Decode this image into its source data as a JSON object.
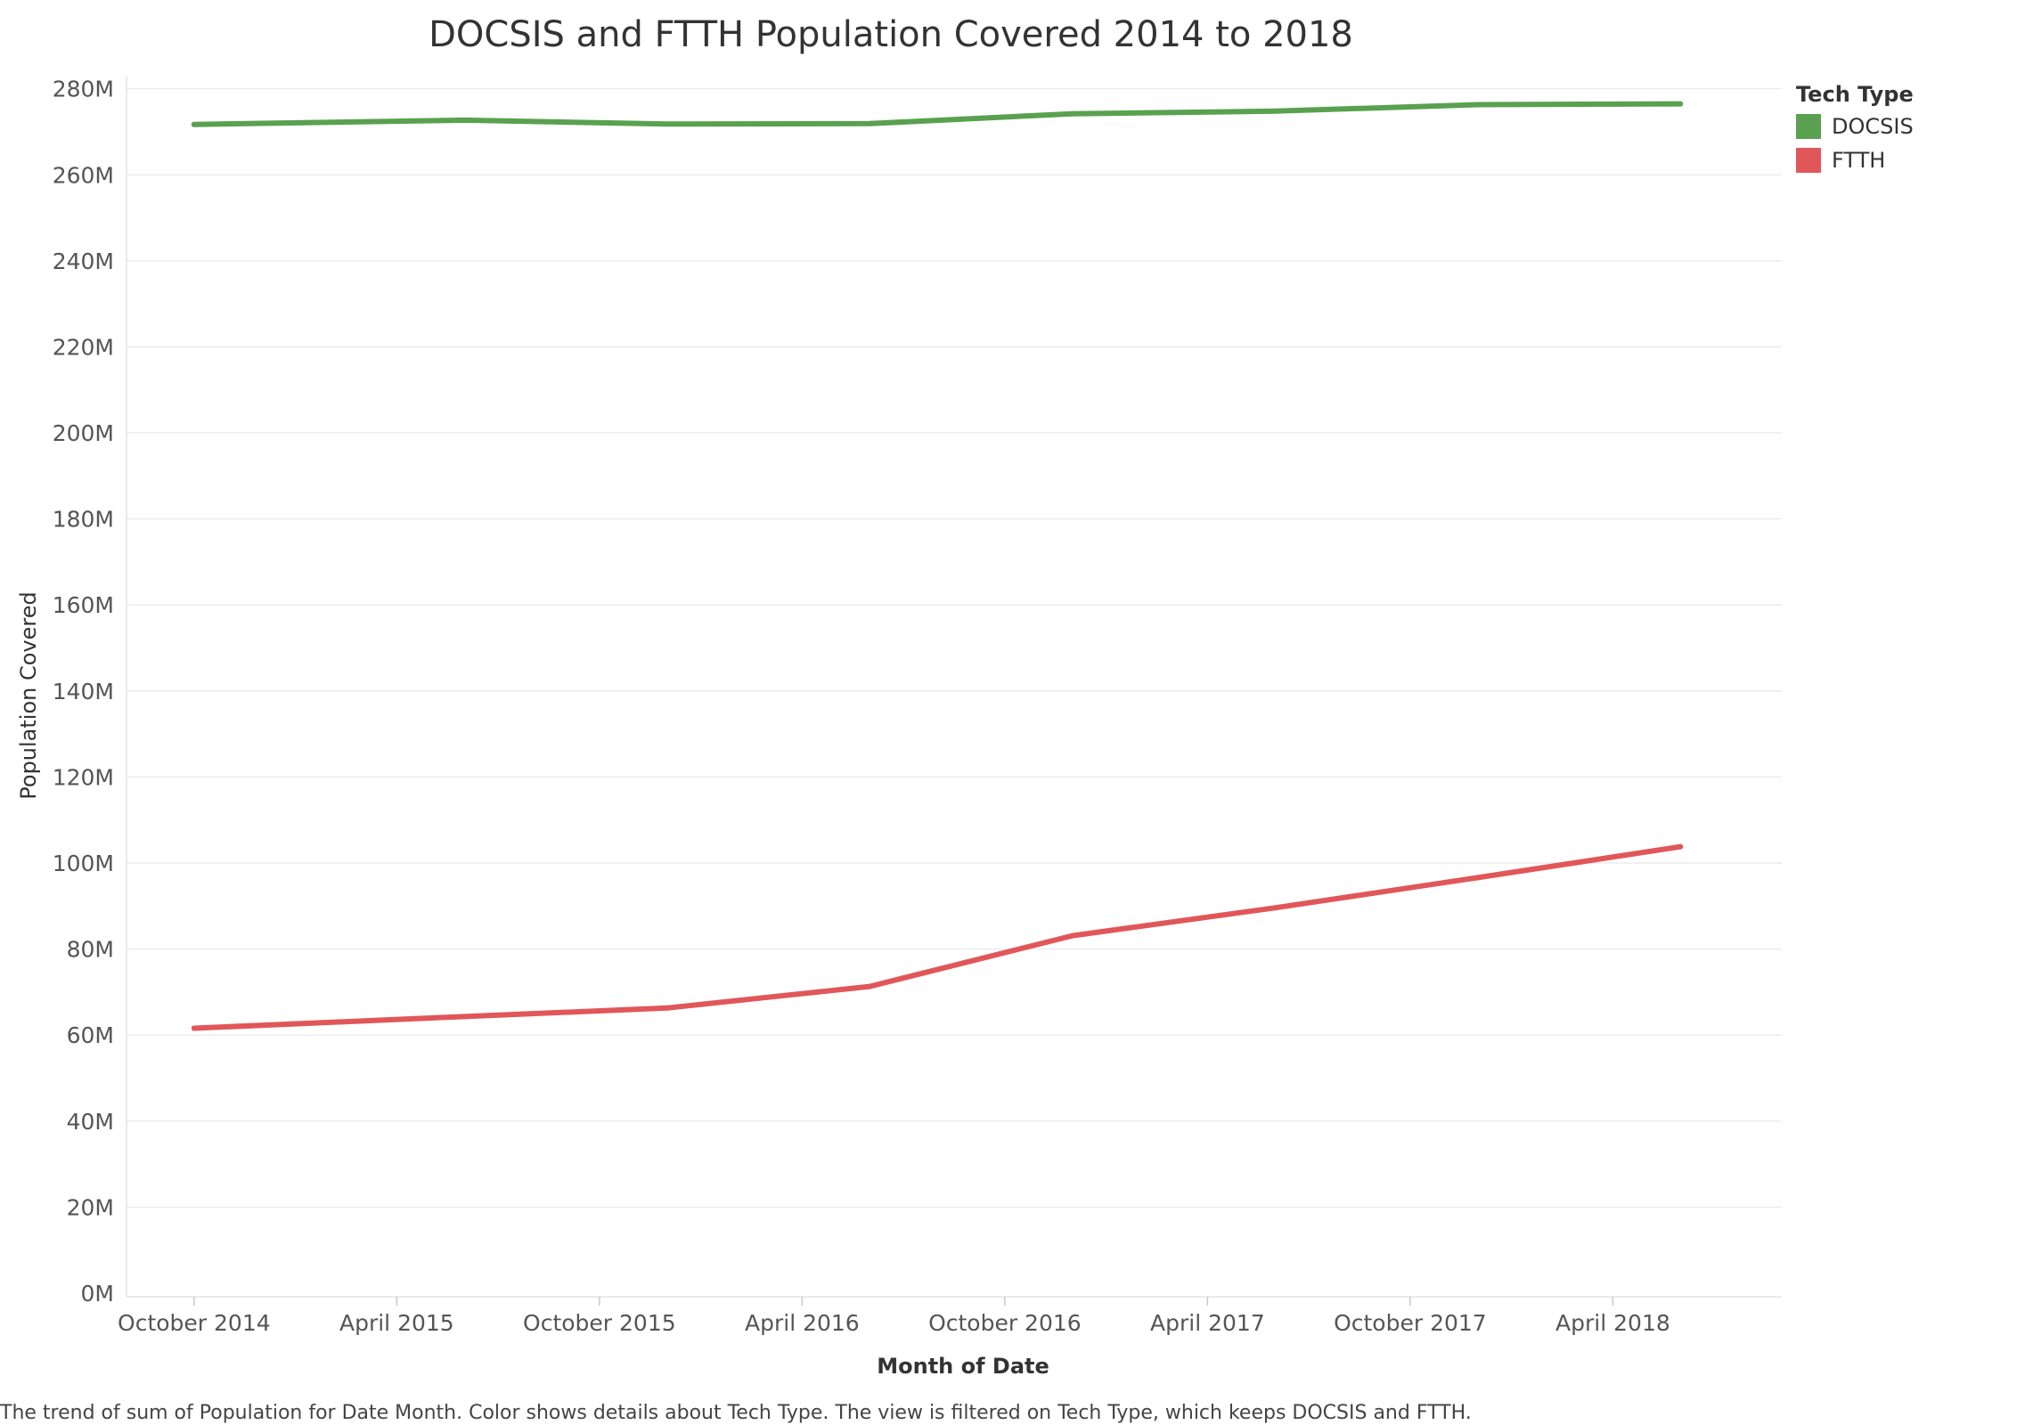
{
  "chart_data": {
    "type": "line",
    "title": "DOCSIS and FTTH Population Covered 2014 to 2018",
    "xlabel": "Month of Date",
    "ylabel": "Population Covered",
    "x": [
      "2014-10",
      "2015-06",
      "2015-12",
      "2016-06",
      "2016-12",
      "2017-06",
      "2017-12",
      "2018-06"
    ],
    "x_ticks": [
      {
        "date": "2014-10",
        "label": "October 2014"
      },
      {
        "date": "2015-04",
        "label": "April 2015"
      },
      {
        "date": "2015-10",
        "label": "October 2015"
      },
      {
        "date": "2016-04",
        "label": "April 2016"
      },
      {
        "date": "2016-10",
        "label": "October 2016"
      },
      {
        "date": "2017-04",
        "label": "April 2017"
      },
      {
        "date": "2017-10",
        "label": "October 2017"
      },
      {
        "date": "2018-04",
        "label": "April 2018"
      }
    ],
    "xlim": [
      "2014-08",
      "2018-09"
    ],
    "series": [
      {
        "name": "DOCSIS",
        "color": "#59a14f",
        "values": [
          271.7,
          272.7,
          271.8,
          271.9,
          274.2,
          274.8,
          276.3,
          276.5
        ]
      },
      {
        "name": "FTTH",
        "color": "#e15759",
        "values": [
          61.6,
          64.3,
          66.3,
          71.3,
          83.1,
          89.6,
          96.6,
          103.8
        ]
      }
    ],
    "y_ticks": [
      {
        "value": 0,
        "label": "0M"
      },
      {
        "value": 20,
        "label": "20M"
      },
      {
        "value": 40,
        "label": "40M"
      },
      {
        "value": 60,
        "label": "60M"
      },
      {
        "value": 80,
        "label": "80M"
      },
      {
        "value": 100,
        "label": "100M"
      },
      {
        "value": 120,
        "label": "120M"
      },
      {
        "value": 140,
        "label": "140M"
      },
      {
        "value": 160,
        "label": "160M"
      },
      {
        "value": 180,
        "label": "180M"
      },
      {
        "value": 200,
        "label": "200M"
      },
      {
        "value": 220,
        "label": "220M"
      },
      {
        "value": 240,
        "label": "240M"
      },
      {
        "value": 260,
        "label": "260M"
      },
      {
        "value": 280,
        "label": "280M"
      }
    ],
    "ylim": [
      0,
      282
    ],
    "grid": true,
    "legend": {
      "title": "Tech Type",
      "position": "right"
    }
  },
  "caption": "The trend of sum of Population for Date Month.  Color shows details about Tech Type. The view is filtered on Tech Type, which keeps DOCSIS and FTTH."
}
